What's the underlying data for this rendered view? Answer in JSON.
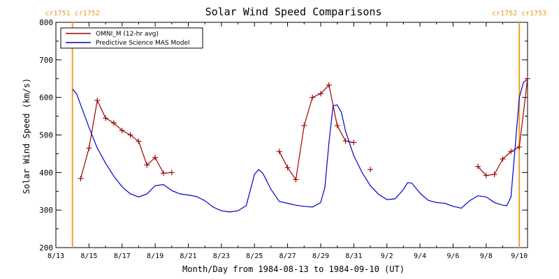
{
  "chart_data": {
    "type": "line",
    "title": "Solar Wind Speed Comparisons",
    "xlabel": "Month/Day from 1984-08-13 to 1984-09-10 (UT)",
    "ylabel": "Solar Wind Speed (km/s)",
    "x_range": [
      "1984-08-13",
      "1984-09-10"
    ],
    "ylim": [
      200,
      800
    ],
    "y_ticks": [
      200,
      300,
      400,
      500,
      600,
      700,
      800
    ],
    "x_tick_labels": [
      "8/13",
      "8/15",
      "8/17",
      "8/19",
      "8/21",
      "8/23",
      "8/25",
      "8/27",
      "8/29",
      "8/31",
      "9/2",
      "9/4",
      "9/6",
      "9/8",
      "9/10"
    ],
    "x_tick_dates": [
      "1984-08-13",
      "1984-08-15",
      "1984-08-17",
      "1984-08-19",
      "1984-08-21",
      "1984-08-23",
      "1984-08-25",
      "1984-08-27",
      "1984-08-29",
      "1984-08-31",
      "1984-09-02",
      "1984-09-04",
      "1984-09-06",
      "1984-09-08",
      "1984-09-10"
    ],
    "grid": false,
    "legend_position": "top-left",
    "colors": {
      "omni": "#a00000",
      "model": "#0000c8",
      "carrington": "#f0a030"
    },
    "carrington_markers": [
      {
        "date": "1984-08-14T00:00",
        "label_left": "cr1751",
        "label_right": "cr1752"
      },
      {
        "date": "1984-09-10T00:00",
        "label_left": "cr1752",
        "label_right": "cr1753"
      }
    ],
    "series": [
      {
        "name": "OMNI_M (12-hr avg)",
        "color": "#a00000",
        "marker": "+",
        "segments": [
          [
            [
              "1984-08-14T12:00",
              384
            ],
            [
              "1984-08-15T00:00",
              465
            ],
            [
              "1984-08-15T12:00",
              592
            ],
            [
              "1984-08-16T00:00",
              545
            ],
            [
              "1984-08-16T12:00",
              532
            ],
            [
              "1984-08-17T00:00",
              512
            ],
            [
              "1984-08-17T12:00",
              500
            ],
            [
              "1984-08-18T00:00",
              483
            ],
            [
              "1984-08-18T12:00",
              420
            ],
            [
              "1984-08-19T00:00",
              440
            ],
            [
              "1984-08-19T12:00",
              398
            ],
            [
              "1984-08-20T00:00",
              400
            ]
          ],
          [
            [
              "1984-08-26T12:00",
              456
            ],
            [
              "1984-08-27T00:00",
              413
            ],
            [
              "1984-08-27T12:00",
              381
            ],
            [
              "1984-08-28T00:00",
              525
            ],
            [
              "1984-08-28T12:00",
              600
            ],
            [
              "1984-08-29T00:00",
              610
            ],
            [
              "1984-08-29T12:00",
              633
            ],
            [
              "1984-08-30T00:00",
              525
            ],
            [
              "1984-08-30T12:00",
              484
            ],
            [
              "1984-08-31T00:00",
              480
            ]
          ],
          [
            [
              "1984-09-01T00:00",
              408
            ]
          ],
          [
            [
              "1984-09-07T12:00",
              416
            ],
            [
              "1984-09-08T00:00",
              392
            ],
            [
              "1984-09-08T12:00",
              395
            ],
            [
              "1984-09-09T00:00",
              436
            ],
            [
              "1984-09-09T12:00",
              456
            ],
            [
              "1984-09-10T00:00",
              468
            ],
            [
              "1984-09-10T12:00",
              650
            ]
          ]
        ]
      },
      {
        "name": "Predictive Science MAS Model",
        "color": "#0000c8",
        "marker": "none",
        "segments": [
          [
            [
              "1984-08-14T00:00",
              622
            ],
            [
              "1984-08-14T06:00",
              610
            ],
            [
              "1984-08-14T12:00",
              580
            ],
            [
              "1984-08-15T00:00",
              520
            ],
            [
              "1984-08-15T12:00",
              465
            ],
            [
              "1984-08-16T00:00",
              425
            ],
            [
              "1984-08-16T12:00",
              390
            ],
            [
              "1984-08-17T00:00",
              362
            ],
            [
              "1984-08-17T12:00",
              343
            ],
            [
              "1984-08-18T00:00",
              335
            ],
            [
              "1984-08-18T12:00",
              343
            ],
            [
              "1984-08-19T00:00",
              365
            ],
            [
              "1984-08-19T12:00",
              368
            ],
            [
              "1984-08-20T00:00",
              352
            ],
            [
              "1984-08-20T12:00",
              343
            ],
            [
              "1984-08-21T00:00",
              340
            ],
            [
              "1984-08-21T12:00",
              336
            ],
            [
              "1984-08-22T00:00",
              325
            ],
            [
              "1984-08-22T12:00",
              308
            ],
            [
              "1984-08-23T00:00",
              298
            ],
            [
              "1984-08-23T12:00",
              295
            ],
            [
              "1984-08-24T00:00",
              298
            ],
            [
              "1984-08-24T12:00",
              312
            ],
            [
              "1984-08-25T00:00",
              395
            ],
            [
              "1984-08-25T06:00",
              408
            ],
            [
              "1984-08-25T12:00",
              398
            ],
            [
              "1984-08-26T00:00",
              355
            ],
            [
              "1984-08-26T12:00",
              323
            ],
            [
              "1984-08-27T00:00",
              318
            ],
            [
              "1984-08-27T12:00",
              313
            ],
            [
              "1984-08-28T00:00",
              310
            ],
            [
              "1984-08-28T12:00",
              308
            ],
            [
              "1984-08-29T00:00",
              320
            ],
            [
              "1984-08-29T06:00",
              360
            ],
            [
              "1984-08-29T12:00",
              480
            ],
            [
              "1984-08-29T18:00",
              578
            ],
            [
              "1984-08-30T00:00",
              580
            ],
            [
              "1984-08-30T06:00",
              560
            ],
            [
              "1984-08-30T12:00",
              510
            ],
            [
              "1984-08-31T00:00",
              445
            ],
            [
              "1984-08-31T12:00",
              400
            ],
            [
              "1984-09-01T00:00",
              365
            ],
            [
              "1984-09-01T12:00",
              342
            ],
            [
              "1984-09-02T00:00",
              328
            ],
            [
              "1984-09-02T12:00",
              330
            ],
            [
              "1984-09-03T00:00",
              355
            ],
            [
              "1984-09-03T06:00",
              373
            ],
            [
              "1984-09-03T12:00",
              372
            ],
            [
              "1984-09-04T00:00",
              345
            ],
            [
              "1984-09-04T12:00",
              326
            ],
            [
              "1984-09-05T00:00",
              320
            ],
            [
              "1984-09-05T12:00",
              318
            ],
            [
              "1984-09-06T00:00",
              310
            ],
            [
              "1984-09-06T12:00",
              305
            ],
            [
              "1984-09-07T00:00",
              325
            ],
            [
              "1984-09-07T12:00",
              338
            ],
            [
              "1984-09-08T00:00",
              335
            ],
            [
              "1984-09-08T12:00",
              320
            ],
            [
              "1984-09-09T00:00",
              313
            ],
            [
              "1984-09-09T06:00",
              312
            ],
            [
              "1984-09-09T12:00",
              335
            ],
            [
              "1984-09-10T00:00",
              600
            ],
            [
              "1984-09-10T06:00",
              640
            ],
            [
              "1984-09-10T12:00",
              648
            ]
          ]
        ]
      }
    ]
  }
}
